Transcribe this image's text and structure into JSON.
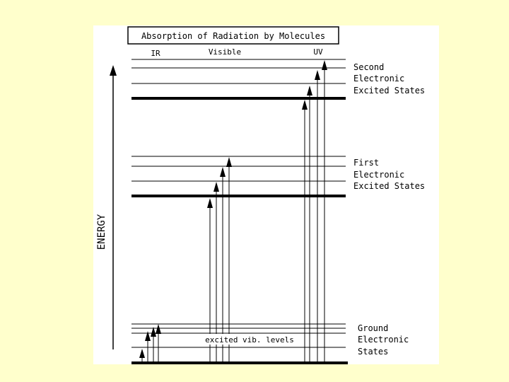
{
  "title": "Absorption of Radiation by Molecules",
  "regions": {
    "ir": "IR",
    "visible": "Visible",
    "uv": "UV"
  },
  "axis_label": "ENERGY",
  "states": {
    "second": [
      "Second",
      "Electronic",
      "Excited States"
    ],
    "first": [
      "First",
      "Electronic",
      "Excited States"
    ],
    "ground": [
      "Ground",
      "Electronic",
      "States"
    ]
  },
  "vib_label": "excited vib. levels",
  "colors": {
    "background": "#ffffcc",
    "panel": "#ffffff",
    "ink": "#000000"
  }
}
